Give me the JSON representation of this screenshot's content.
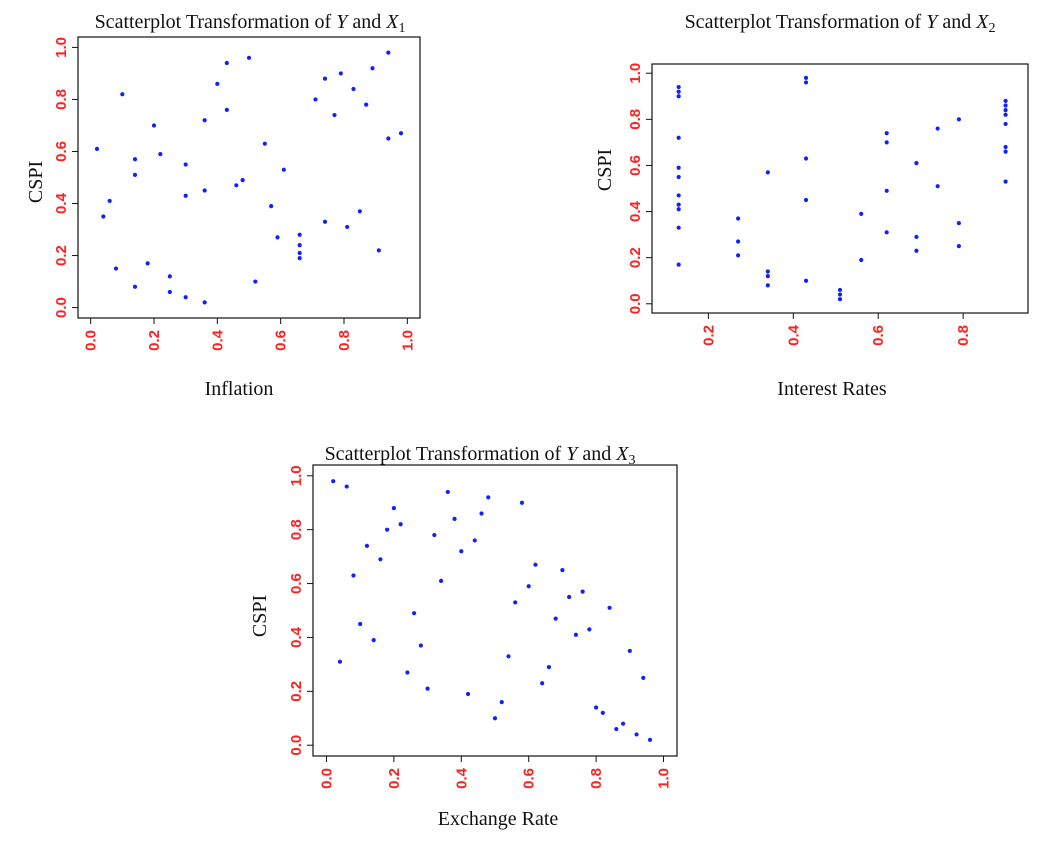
{
  "chart_data": [
    {
      "type": "scatter",
      "title_text": "Scatterplot Transformation of ",
      "title_y": "Y",
      "title_and": " and ",
      "title_x": "X",
      "title_sub": "1",
      "xlabel": "Inflation",
      "ylabel": "CSPI",
      "xlim": [
        0,
        1
      ],
      "ylim": [
        0,
        1
      ],
      "xticks": [
        "0.0",
        "0.2",
        "0.4",
        "0.6",
        "0.8",
        "1.0"
      ],
      "xtick_values": [
        0,
        0.2,
        0.4,
        0.6,
        0.8,
        1.0
      ],
      "yticks": [
        "0.0",
        "0.2",
        "0.4",
        "0.6",
        "0.8",
        "1.0"
      ],
      "ytick_values": [
        0,
        0.2,
        0.4,
        0.6,
        0.8,
        1.0
      ],
      "grid": false,
      "point_color": "#1020ff",
      "tick_color": "#ff2020",
      "points": [
        [
          0.02,
          0.61
        ],
        [
          0.04,
          0.35
        ],
        [
          0.06,
          0.41
        ],
        [
          0.08,
          0.15
        ],
        [
          0.1,
          0.82
        ],
        [
          0.14,
          0.08
        ],
        [
          0.14,
          0.51
        ],
        [
          0.14,
          0.57
        ],
        [
          0.18,
          0.17
        ],
        [
          0.2,
          0.7
        ],
        [
          0.22,
          0.59
        ],
        [
          0.25,
          0.12
        ],
        [
          0.25,
          0.06
        ],
        [
          0.3,
          0.43
        ],
        [
          0.3,
          0.55
        ],
        [
          0.3,
          0.04
        ],
        [
          0.36,
          0.72
        ],
        [
          0.36,
          0.45
        ],
        [
          0.36,
          0.02
        ],
        [
          0.4,
          0.86
        ],
        [
          0.43,
          0.94
        ],
        [
          0.43,
          0.76
        ],
        [
          0.46,
          0.47
        ],
        [
          0.48,
          0.49
        ],
        [
          0.5,
          0.96
        ],
        [
          0.52,
          0.1
        ],
        [
          0.55,
          0.63
        ],
        [
          0.57,
          0.39
        ],
        [
          0.59,
          0.27
        ],
        [
          0.61,
          0.53
        ],
        [
          0.66,
          0.28
        ],
        [
          0.66,
          0.24
        ],
        [
          0.66,
          0.21
        ],
        [
          0.66,
          0.19
        ],
        [
          0.71,
          0.8
        ],
        [
          0.74,
          0.88
        ],
        [
          0.74,
          0.33
        ],
        [
          0.77,
          0.74
        ],
        [
          0.79,
          0.9
        ],
        [
          0.81,
          0.31
        ],
        [
          0.83,
          0.84
        ],
        [
          0.85,
          0.37
        ],
        [
          0.87,
          0.78
        ],
        [
          0.89,
          0.92
        ],
        [
          0.91,
          0.22
        ],
        [
          0.94,
          0.98
        ],
        [
          0.94,
          0.65
        ],
        [
          0.98,
          0.67
        ]
      ]
    },
    {
      "type": "scatter",
      "title_text": "Scatterplot Transformation of ",
      "title_y": "Y",
      "title_and": " and ",
      "title_x": "X",
      "title_sub": "2",
      "xlabel": "Interest Rates",
      "ylabel": "CSPI",
      "xlim": [
        0.1,
        0.92
      ],
      "ylim": [
        0,
        1
      ],
      "xticks": [
        "0.2",
        "0.4",
        "0.6",
        "0.8"
      ],
      "xtick_values": [
        0.2,
        0.4,
        0.6,
        0.8
      ],
      "yticks": [
        "0.0",
        "0.2",
        "0.4",
        "0.6",
        "0.8",
        "1.0"
      ],
      "ytick_values": [
        0,
        0.2,
        0.4,
        0.6,
        0.8,
        1.0
      ],
      "grid": false,
      "point_color": "#1020ff",
      "tick_color": "#ff2020",
      "points": [
        [
          0.13,
          0.94
        ],
        [
          0.13,
          0.92
        ],
        [
          0.13,
          0.9
        ],
        [
          0.13,
          0.72
        ],
        [
          0.13,
          0.59
        ],
        [
          0.13,
          0.55
        ],
        [
          0.13,
          0.47
        ],
        [
          0.13,
          0.43
        ],
        [
          0.13,
          0.41
        ],
        [
          0.13,
          0.33
        ],
        [
          0.13,
          0.17
        ],
        [
          0.27,
          0.37
        ],
        [
          0.27,
          0.27
        ],
        [
          0.27,
          0.21
        ],
        [
          0.34,
          0.57
        ],
        [
          0.34,
          0.14
        ],
        [
          0.34,
          0.12
        ],
        [
          0.34,
          0.08
        ],
        [
          0.43,
          0.98
        ],
        [
          0.43,
          0.96
        ],
        [
          0.43,
          0.63
        ],
        [
          0.43,
          0.45
        ],
        [
          0.43,
          0.1
        ],
        [
          0.51,
          0.06
        ],
        [
          0.51,
          0.04
        ],
        [
          0.51,
          0.02
        ],
        [
          0.56,
          0.39
        ],
        [
          0.56,
          0.19
        ],
        [
          0.62,
          0.74
        ],
        [
          0.62,
          0.7
        ],
        [
          0.62,
          0.49
        ],
        [
          0.62,
          0.31
        ],
        [
          0.69,
          0.61
        ],
        [
          0.69,
          0.29
        ],
        [
          0.69,
          0.23
        ],
        [
          0.74,
          0.76
        ],
        [
          0.74,
          0.51
        ],
        [
          0.79,
          0.8
        ],
        [
          0.79,
          0.35
        ],
        [
          0.79,
          0.25
        ],
        [
          0.9,
          0.88
        ],
        [
          0.9,
          0.86
        ],
        [
          0.9,
          0.84
        ],
        [
          0.9,
          0.82
        ],
        [
          0.9,
          0.78
        ],
        [
          0.9,
          0.68
        ],
        [
          0.9,
          0.66
        ],
        [
          0.9,
          0.53
        ]
      ]
    },
    {
      "type": "scatter",
      "title_text": "Scatterplot Transformation of ",
      "title_y": "Y",
      "title_and": " and ",
      "title_x": "X",
      "title_sub": "3",
      "xlabel": "Exchange Rate",
      "ylabel": "CSPI",
      "xlim": [
        0,
        1
      ],
      "ylim": [
        0,
        1
      ],
      "xticks": [
        "0.0",
        "0.2",
        "0.4",
        "0.6",
        "0.8",
        "1.0"
      ],
      "xtick_values": [
        0,
        0.2,
        0.4,
        0.6,
        0.8,
        1.0
      ],
      "yticks": [
        "0.0",
        "0.2",
        "0.4",
        "0.6",
        "0.8",
        "1.0"
      ],
      "ytick_values": [
        0,
        0.2,
        0.4,
        0.6,
        0.8,
        1.0
      ],
      "grid": false,
      "point_color": "#1020ff",
      "tick_color": "#ff2020",
      "points": [
        [
          0.02,
          0.98
        ],
        [
          0.04,
          0.31
        ],
        [
          0.06,
          0.96
        ],
        [
          0.08,
          0.63
        ],
        [
          0.1,
          0.45
        ],
        [
          0.12,
          0.74
        ],
        [
          0.14,
          0.39
        ],
        [
          0.16,
          0.69
        ],
        [
          0.18,
          0.8
        ],
        [
          0.2,
          0.88
        ],
        [
          0.22,
          0.82
        ],
        [
          0.24,
          0.27
        ],
        [
          0.26,
          0.49
        ],
        [
          0.28,
          0.37
        ],
        [
          0.3,
          0.21
        ],
        [
          0.32,
          0.78
        ],
        [
          0.34,
          0.61
        ],
        [
          0.36,
          0.94
        ],
        [
          0.38,
          0.84
        ],
        [
          0.4,
          0.72
        ],
        [
          0.42,
          0.19
        ],
        [
          0.44,
          0.76
        ],
        [
          0.46,
          0.86
        ],
        [
          0.48,
          0.92
        ],
        [
          0.5,
          0.1
        ],
        [
          0.52,
          0.16
        ],
        [
          0.54,
          0.33
        ],
        [
          0.56,
          0.53
        ],
        [
          0.58,
          0.9
        ],
        [
          0.6,
          0.59
        ],
        [
          0.62,
          0.67
        ],
        [
          0.64,
          0.23
        ],
        [
          0.66,
          0.29
        ],
        [
          0.68,
          0.47
        ],
        [
          0.7,
          0.65
        ],
        [
          0.72,
          0.55
        ],
        [
          0.74,
          0.41
        ],
        [
          0.76,
          0.57
        ],
        [
          0.78,
          0.43
        ],
        [
          0.8,
          0.14
        ],
        [
          0.82,
          0.12
        ],
        [
          0.84,
          0.51
        ],
        [
          0.86,
          0.06
        ],
        [
          0.88,
          0.08
        ],
        [
          0.9,
          0.35
        ],
        [
          0.92,
          0.04
        ],
        [
          0.94,
          0.25
        ],
        [
          0.96,
          0.02
        ]
      ]
    }
  ]
}
